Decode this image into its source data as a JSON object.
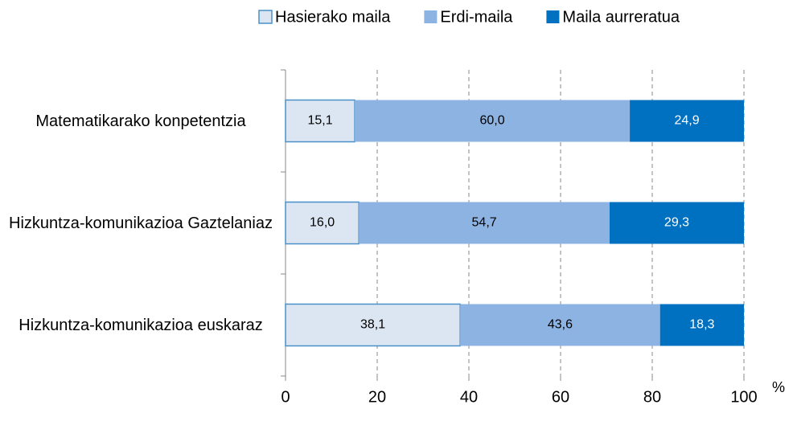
{
  "chart_data": {
    "type": "stacked_barh",
    "categories": [
      "Matematikarako konpetentzia",
      "Hizkuntza-komunikazioa Gaztelaniaz",
      "Hizkuntza-komunikazioa euskaraz"
    ],
    "series": [
      {
        "name": "Hasierako maila",
        "color": "#dce6f2",
        "values": [
          15.1,
          16.0,
          38.1
        ],
        "value_labels": [
          "15,1",
          "16,0",
          "38,1"
        ]
      },
      {
        "name": "Erdi-maila",
        "color": "#8db3e2",
        "values": [
          60.0,
          54.7,
          43.6
        ],
        "value_labels": [
          "60,0",
          "54,7",
          "43,6"
        ]
      },
      {
        "name": "Maila aurreratua",
        "color": "#0070c0",
        "values": [
          24.9,
          29.3,
          18.3
        ],
        "value_labels": [
          "24,9",
          "29,3",
          "18,3"
        ]
      }
    ],
    "x_label": "%",
    "xlim": [
      0,
      100
    ],
    "xticks": [
      0,
      20,
      40,
      60,
      80,
      100
    ],
    "grid": true,
    "legend": "top"
  }
}
